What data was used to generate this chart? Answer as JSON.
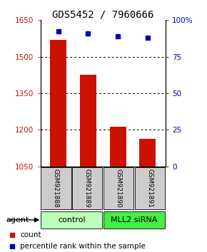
{
  "title": "GDS5452 / 7960666",
  "samples": [
    "GSM921888",
    "GSM921889",
    "GSM921890",
    "GSM921891"
  ],
  "counts": [
    1568,
    1425,
    1213,
    1163
  ],
  "percentiles": [
    92.5,
    91.0,
    89.0,
    88.0
  ],
  "ylim_left": [
    1050,
    1650
  ],
  "ylim_right": [
    0,
    100
  ],
  "yticks_left": [
    1050,
    1200,
    1350,
    1500,
    1650
  ],
  "yticks_right": [
    0,
    25,
    50,
    75,
    100
  ],
  "bar_color": "#cc1100",
  "dot_color": "#0000bb",
  "groups": [
    {
      "label": "control",
      "indices": [
        0,
        1
      ],
      "color": "#bbffbb"
    },
    {
      "label": "MLL2 siRNA",
      "indices": [
        2,
        3
      ],
      "color": "#44ee44"
    }
  ],
  "sample_box_color": "#cccccc",
  "agent_label": "agent",
  "legend_count_label": "count",
  "legend_percentile_label": "percentile rank within the sample",
  "bar_width": 0.55,
  "title_fontsize": 10,
  "tick_fontsize": 7.5,
  "sample_fontsize": 6.5,
  "group_fontsize": 8
}
